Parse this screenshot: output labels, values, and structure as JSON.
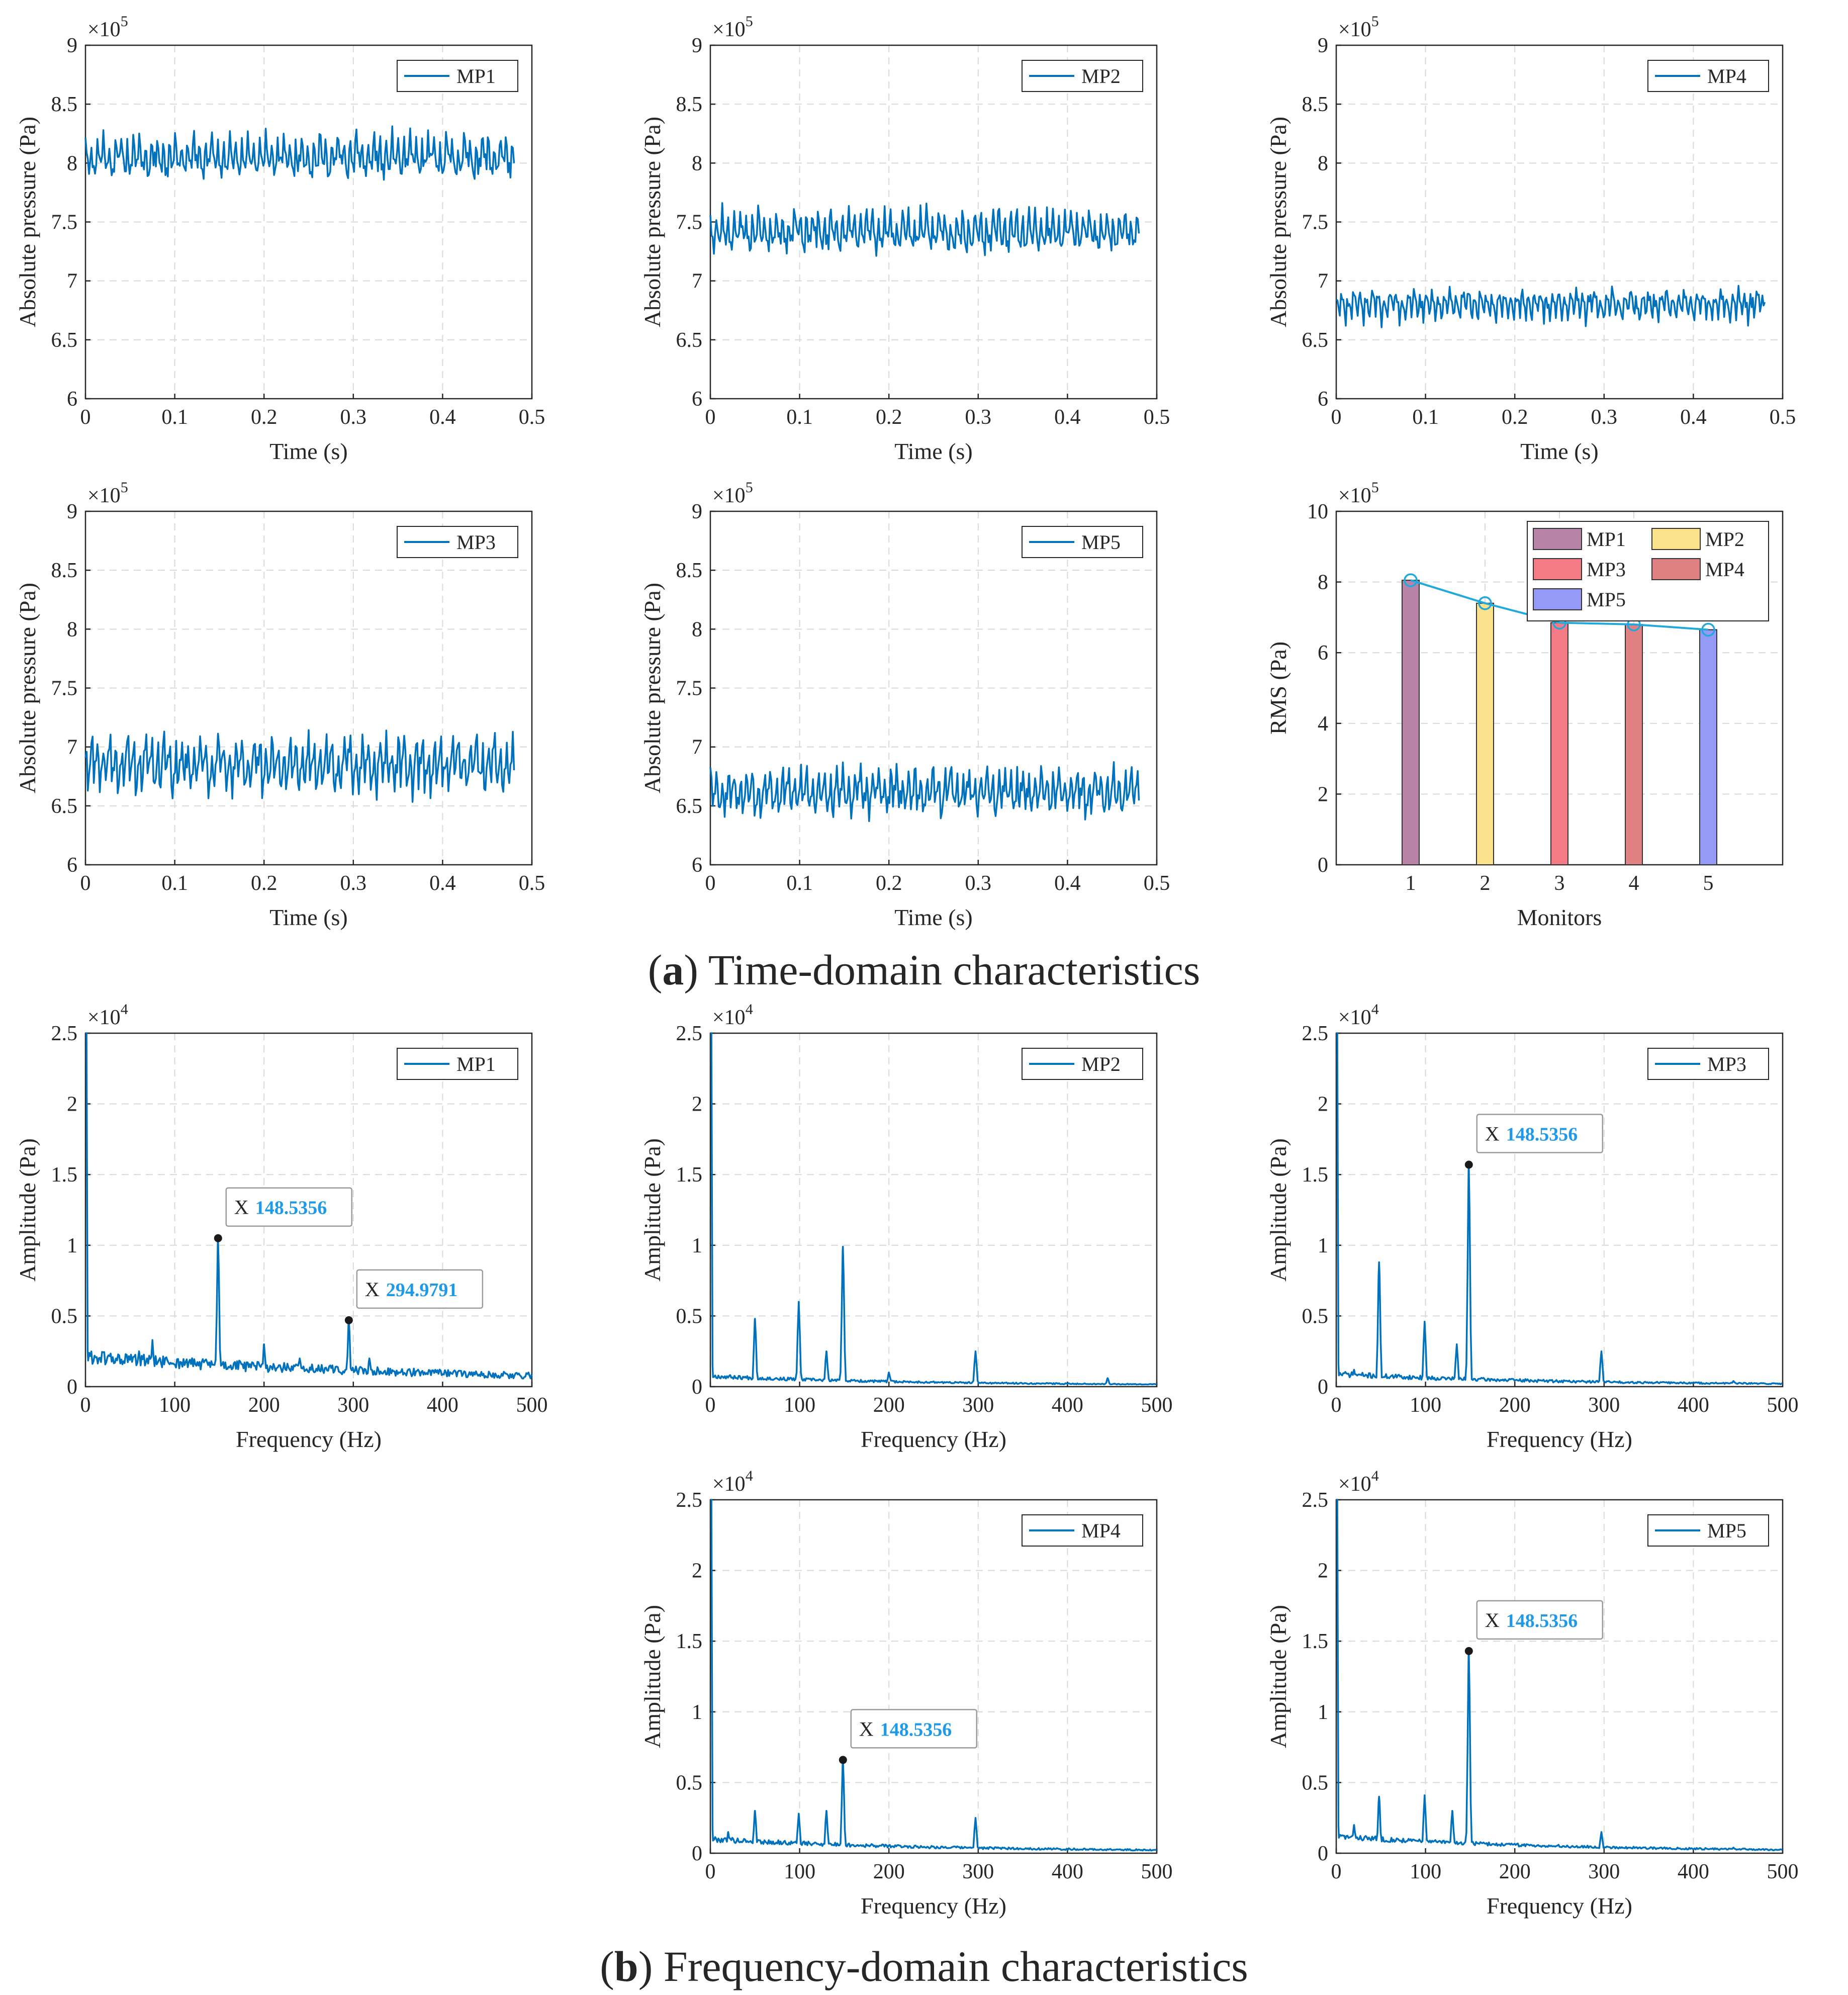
{
  "figure": {
    "caption_a": {
      "letter": "a",
      "text": "Time-domain characteristics"
    },
    "caption_b": {
      "letter": "b",
      "text": "Frequency-domain characteristics"
    }
  },
  "colors": {
    "line": "#0072BD",
    "rms_line": "#22A9DC",
    "datatip_value": "#1E9AE8",
    "bars": [
      "#B784A7",
      "#FCE28A",
      "#F47B86",
      "#E08284",
      "#949AF5"
    ]
  },
  "chart_data": [
    {
      "id": "time-mp1",
      "type": "line",
      "legend": "MP1",
      "xlabel": "Time (s)",
      "ylabel": "Absolute pressure (Pa)",
      "xlim": [
        0,
        0.5
      ],
      "ylim": [
        6,
        9
      ],
      "exponent": "5",
      "xticks": [
        "0",
        "0.1",
        "0.2",
        "0.3",
        "0.4",
        "0.5"
      ],
      "yticks": [
        "6",
        "6.5",
        "7",
        "7.5",
        "8",
        "8.5",
        "9"
      ],
      "signal": {
        "duration": 0.48,
        "mean": 8.05,
        "amplitude": 0.2,
        "samples": 360,
        "seed": 11
      }
    },
    {
      "id": "time-mp2",
      "type": "line",
      "legend": "MP2",
      "xlabel": "Time (s)",
      "ylabel": "Absolute pressure (Pa)",
      "xlim": [
        0,
        0.5
      ],
      "ylim": [
        6,
        9
      ],
      "exponent": "5",
      "xticks": [
        "0",
        "0.1",
        "0.2",
        "0.3",
        "0.4",
        "0.5"
      ],
      "yticks": [
        "6",
        "6.5",
        "7",
        "7.5",
        "8",
        "8.5",
        "9"
      ],
      "signal": {
        "duration": 0.48,
        "mean": 7.42,
        "amplitude": 0.2,
        "samples": 360,
        "seed": 23
      }
    },
    {
      "id": "time-mp4",
      "type": "line",
      "legend": "MP4",
      "xlabel": "Time (s)",
      "ylabel": "Absolute pressure (Pa)",
      "xlim": [
        0,
        0.5
      ],
      "ylim": [
        6,
        9
      ],
      "exponent": "5",
      "xticks": [
        "0",
        "0.1",
        "0.2",
        "0.3",
        "0.4",
        "0.5"
      ],
      "yticks": [
        "6",
        "6.5",
        "7",
        "7.5",
        "8",
        "8.5",
        "9"
      ],
      "signal": {
        "duration": 0.48,
        "mean": 6.8,
        "amplitude": 0.15,
        "samples": 360,
        "seed": 37
      }
    },
    {
      "id": "time-mp3",
      "type": "line",
      "legend": "MP3",
      "xlabel": "Time (s)",
      "ylabel": "Absolute pressure (Pa)",
      "xlim": [
        0,
        0.5
      ],
      "ylim": [
        6,
        9
      ],
      "exponent": "5",
      "xticks": [
        "0",
        "0.1",
        "0.2",
        "0.3",
        "0.4",
        "0.5"
      ],
      "yticks": [
        "6",
        "6.5",
        "7",
        "7.5",
        "8",
        "8.5",
        "9"
      ],
      "signal": {
        "duration": 0.48,
        "mean": 6.85,
        "amplitude": 0.27,
        "samples": 360,
        "seed": 41
      }
    },
    {
      "id": "time-mp5",
      "type": "line",
      "legend": "MP5",
      "xlabel": "Time (s)",
      "ylabel": "Absolute pressure (Pa)",
      "xlim": [
        0,
        0.5
      ],
      "ylim": [
        6,
        9
      ],
      "exponent": "5",
      "xticks": [
        "0",
        "0.1",
        "0.2",
        "0.3",
        "0.4",
        "0.5"
      ],
      "yticks": [
        "6",
        "6.5",
        "7",
        "7.5",
        "8",
        "8.5",
        "9"
      ],
      "signal": {
        "duration": 0.48,
        "mean": 6.62,
        "amplitude": 0.22,
        "samples": 360,
        "seed": 53
      }
    },
    {
      "id": "rms",
      "type": "bar",
      "xlabel": "Monitors",
      "ylabel": "RMS (Pa)",
      "xlim": [
        0,
        6
      ],
      "ylim": [
        0,
        10
      ],
      "exponent": "5",
      "categories": [
        "1",
        "2",
        "3",
        "4",
        "5"
      ],
      "xticks": [
        "1",
        "2",
        "3",
        "4",
        "5"
      ],
      "yticks": [
        "0",
        "2",
        "4",
        "6",
        "8",
        "10"
      ],
      "values": [
        8.05,
        7.4,
        6.85,
        6.8,
        6.65
      ],
      "legend_entries": [
        "MP1",
        "MP2",
        "MP3",
        "MP4",
        "MP5"
      ]
    },
    {
      "id": "freq-mp1",
      "type": "line",
      "legend": "MP1",
      "xlabel": "Frequency (Hz)",
      "ylabel": "Amplitude (Pa)",
      "xlim": [
        0,
        500
      ],
      "ylim": [
        0,
        2.5
      ],
      "exponent": "4",
      "xticks": [
        "0",
        "100",
        "200",
        "300",
        "400",
        "500"
      ],
      "yticks": [
        "0",
        "0.5",
        "1",
        "1.5",
        "2",
        "2.5"
      ],
      "spectrum": {
        "base": 0.15,
        "noise": 0.1,
        "decay": 420,
        "seed": 61,
        "peaks": [
          [
            148.5,
            1.05
          ],
          [
            294.98,
            0.47
          ],
          [
            75,
            0.33
          ],
          [
            200,
            0.3
          ],
          [
            240,
            0.2
          ],
          [
            318,
            0.2
          ],
          [
            60,
            0.25
          ]
        ]
      },
      "datatips": [
        {
          "label": "X",
          "value": "148.5356",
          "x": 148.5356,
          "y": 1.05
        },
        {
          "label": "X",
          "value": "294.9791",
          "x": 294.9791,
          "y": 0.47
        }
      ]
    },
    {
      "id": "freq-mp2",
      "type": "line",
      "legend": "MP2",
      "xlabel": "Frequency (Hz)",
      "ylabel": "Amplitude (Pa)",
      "xlim": [
        0,
        500
      ],
      "ylim": [
        0,
        2.5
      ],
      "exponent": "4",
      "xticks": [
        "0",
        "100",
        "200",
        "300",
        "400",
        "500"
      ],
      "yticks": [
        "0",
        "0.5",
        "1",
        "1.5",
        "2",
        "2.5"
      ],
      "spectrum": {
        "base": 0.05,
        "noise": 0.03,
        "decay": 200,
        "seed": 67,
        "peaks": [
          [
            50,
            0.48
          ],
          [
            99,
            0.6
          ],
          [
            148.5,
            0.99
          ],
          [
            130,
            0.25
          ],
          [
            297,
            0.25
          ],
          [
            200,
            0.1
          ],
          [
            445,
            0.06
          ]
        ]
      },
      "datatips": []
    },
    {
      "id": "freq-mp3",
      "type": "line",
      "legend": "MP3",
      "xlabel": "Frequency (Hz)",
      "ylabel": "Amplitude (Pa)",
      "xlim": [
        0,
        500
      ],
      "ylim": [
        0,
        2.5
      ],
      "exponent": "4",
      "xticks": [
        "0",
        "100",
        "200",
        "300",
        "400",
        "500"
      ],
      "yticks": [
        "0",
        "0.5",
        "1",
        "1.5",
        "2",
        "2.5"
      ],
      "spectrum": {
        "base": 0.06,
        "noise": 0.04,
        "decay": 220,
        "seed": 71,
        "peaks": [
          [
            48,
            0.88
          ],
          [
            99,
            0.46
          ],
          [
            148.5,
            1.57
          ],
          [
            135,
            0.3
          ],
          [
            297,
            0.25
          ],
          [
            20,
            0.12
          ],
          [
            445,
            0.04
          ]
        ]
      },
      "datatips": [
        {
          "label": "X",
          "value": "148.5356",
          "x": 148.5356,
          "y": 1.57
        }
      ]
    },
    {
      "id": "freq-mp4",
      "type": "line",
      "legend": "MP4",
      "xlabel": "Frequency (Hz)",
      "ylabel": "Amplitude (Pa)",
      "xlim": [
        0,
        500
      ],
      "ylim": [
        0,
        2.5
      ],
      "exponent": "4",
      "xticks": [
        "0",
        "100",
        "200",
        "300",
        "400",
        "500"
      ],
      "yticks": [
        "0",
        "0.5",
        "1",
        "1.5",
        "2",
        "2.5"
      ],
      "spectrum": {
        "base": 0.07,
        "noise": 0.04,
        "decay": 230,
        "seed": 79,
        "peaks": [
          [
            148.5,
            0.66
          ],
          [
            50,
            0.3
          ],
          [
            99,
            0.28
          ],
          [
            130,
            0.3
          ],
          [
            297,
            0.25
          ],
          [
            20,
            0.15
          ]
        ]
      },
      "datatips": [
        {
          "label": "X",
          "value": "148.5356",
          "x": 148.5356,
          "y": 0.66
        }
      ]
    },
    {
      "id": "freq-mp5",
      "type": "line",
      "legend": "MP5",
      "xlabel": "Frequency (Hz)",
      "ylabel": "Amplitude (Pa)",
      "xlim": [
        0,
        500
      ],
      "ylim": [
        0,
        2.5
      ],
      "exponent": "4",
      "xticks": [
        "0",
        "100",
        "200",
        "300",
        "400",
        "500"
      ],
      "yticks": [
        "0",
        "0.5",
        "1",
        "1.5",
        "2",
        "2.5"
      ],
      "spectrum": {
        "base": 0.09,
        "noise": 0.04,
        "decay": 230,
        "seed": 83,
        "peaks": [
          [
            148.5,
            1.43
          ],
          [
            48,
            0.4
          ],
          [
            99,
            0.41
          ],
          [
            130,
            0.3
          ],
          [
            297,
            0.15
          ],
          [
            20,
            0.2
          ],
          [
            445,
            0.04
          ]
        ]
      },
      "datatips": [
        {
          "label": "X",
          "value": "148.5356",
          "x": 148.5356,
          "y": 1.43
        }
      ]
    }
  ]
}
